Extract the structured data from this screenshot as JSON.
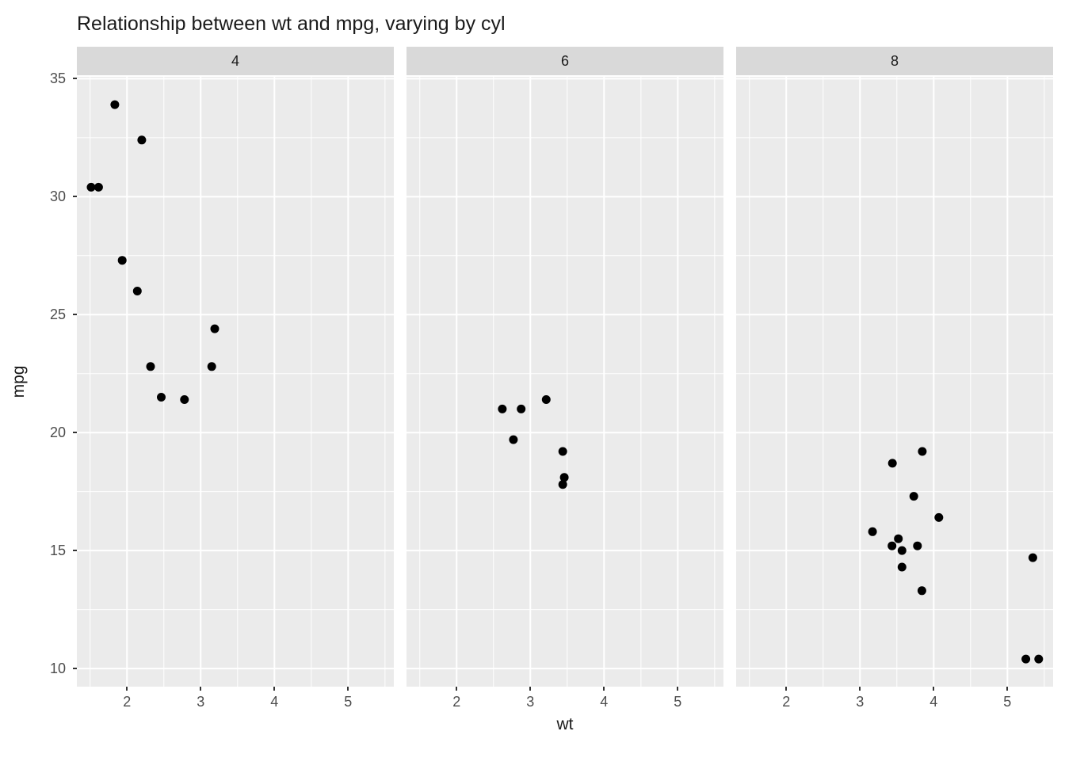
{
  "title": "Relationship between wt and mpg, varying by cyl",
  "xlabel": "wt",
  "ylabel": "mpg",
  "chart_data": {
    "type": "scatter",
    "title": "Relationship between wt and mpg, varying by cyl",
    "xlabel": "wt",
    "ylabel": "mpg",
    "facet_variable": "cyl",
    "x_ticks": [
      2,
      3,
      4,
      5
    ],
    "y_ticks": [
      10,
      15,
      20,
      25,
      30,
      35
    ],
    "x_range": [
      1.32,
      5.62
    ],
    "y_range": [
      9.23,
      35.08
    ],
    "grid": true,
    "legend": "none",
    "colors": {
      "panel_bg": "#ebebeb",
      "strip_bg": "#d9d9d9",
      "grid": "#ffffff",
      "point": "#000000",
      "tick_text": "#4d4d4d",
      "title_text": "#1a1a1a"
    },
    "point_radius": 5.5,
    "facets": [
      {
        "label": "4",
        "points": [
          [
            2.32,
            22.8
          ],
          [
            3.19,
            24.4
          ],
          [
            3.15,
            22.8
          ],
          [
            2.2,
            32.4
          ],
          [
            1.615,
            30.4
          ],
          [
            1.835,
            33.9
          ],
          [
            2.465,
            21.5
          ],
          [
            1.935,
            27.3
          ],
          [
            2.14,
            26.0
          ],
          [
            1.513,
            30.4
          ],
          [
            2.78,
            21.4
          ]
        ]
      },
      {
        "label": "6",
        "points": [
          [
            2.62,
            21.0
          ],
          [
            2.875,
            21.0
          ],
          [
            3.215,
            21.4
          ],
          [
            3.46,
            18.1
          ],
          [
            3.44,
            19.2
          ],
          [
            3.44,
            17.8
          ],
          [
            2.77,
            19.7
          ]
        ]
      },
      {
        "label": "8",
        "points": [
          [
            3.44,
            18.7
          ],
          [
            3.57,
            14.3
          ],
          [
            4.07,
            16.4
          ],
          [
            3.73,
            17.3
          ],
          [
            3.78,
            15.2
          ],
          [
            5.25,
            10.4
          ],
          [
            5.424,
            10.4
          ],
          [
            5.345,
            14.7
          ],
          [
            3.52,
            15.5
          ],
          [
            3.435,
            15.2
          ],
          [
            3.84,
            13.3
          ],
          [
            3.845,
            19.2
          ],
          [
            3.17,
            15.8
          ],
          [
            3.57,
            15.0
          ]
        ]
      }
    ]
  }
}
